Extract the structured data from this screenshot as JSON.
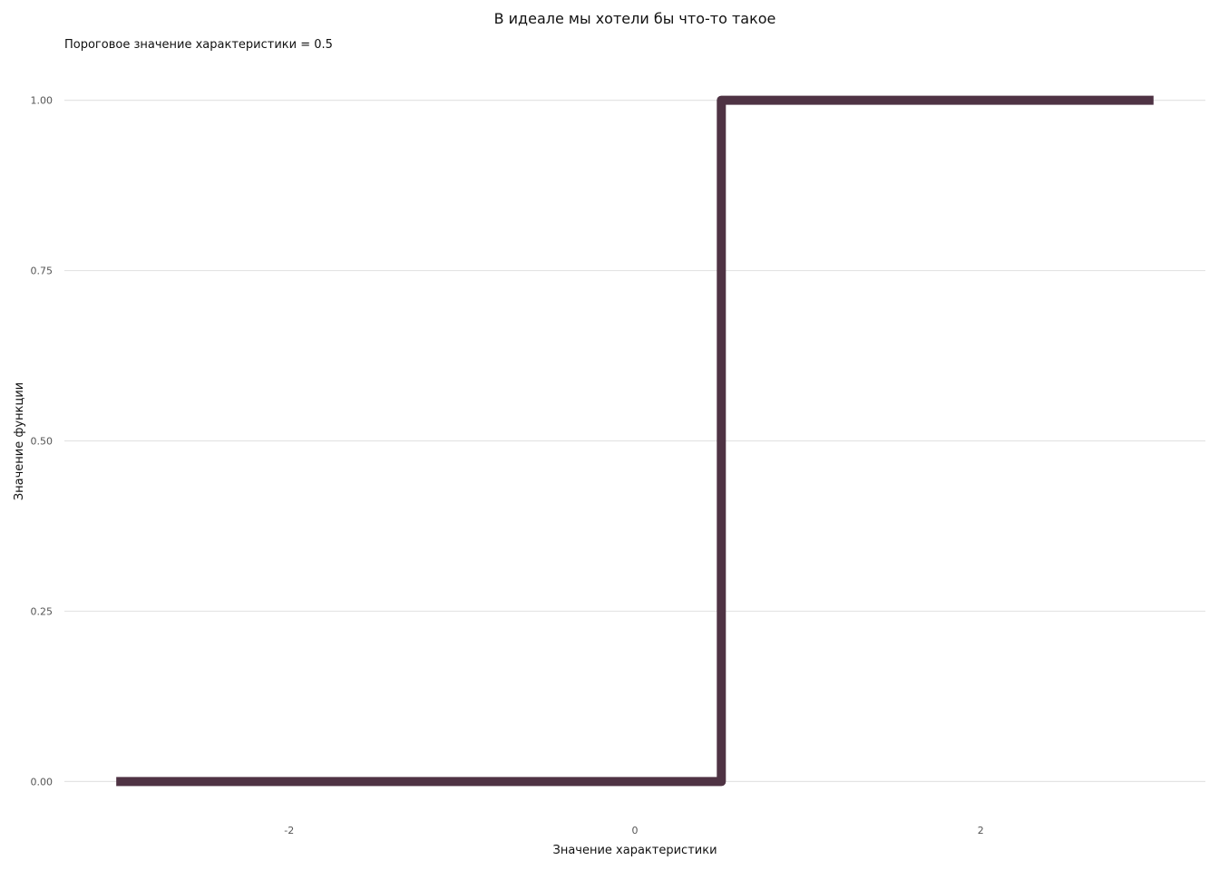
{
  "chart_data": {
    "type": "line",
    "title": "В идеале мы хотели бы что-то такое",
    "subtitle": "Пороговое значение характеристики = 0.5",
    "xlabel": "Значение характеристики",
    "ylabel": "Значение функции",
    "xlim": [
      -3.3,
      3.3
    ],
    "ylim": [
      -0.05,
      1.05
    ],
    "x_ticks": [
      -2,
      0,
      2
    ],
    "x_tick_labels": [
      "-2",
      "0",
      "2"
    ],
    "y_ticks": [
      0,
      0.25,
      0.5,
      0.75,
      1
    ],
    "y_tick_labels": [
      "0.00",
      "0.25",
      "0.50",
      "0.75",
      "1.00"
    ],
    "grid": "horizontal",
    "line_color": "#4f3344",
    "gridline_color": "#e4e4e4",
    "series": [
      {
        "x": [
          -3,
          0.5,
          0.5,
          3
        ],
        "y": [
          0,
          0,
          1,
          1
        ]
      }
    ]
  }
}
